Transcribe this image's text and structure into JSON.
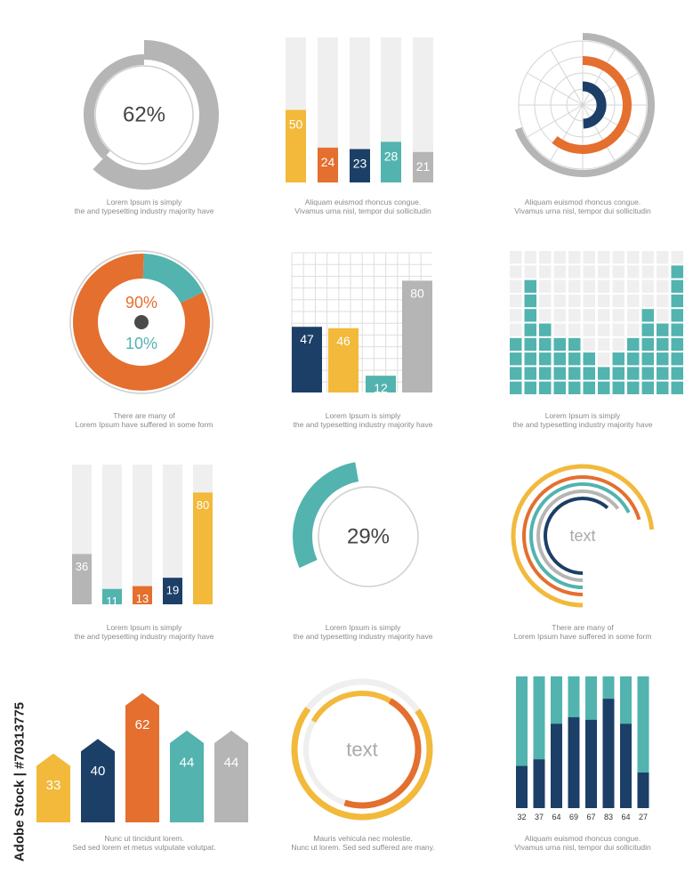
{
  "colors": {
    "yellow": "#F2B93B",
    "orange": "#E46F2E",
    "navy": "#1C3F67",
    "teal": "#52B3AF",
    "gray": "#B5B5B5",
    "light": "#EFEFEF",
    "darkdot": "#4A4A4A"
  },
  "watermark": "Adobe Stock | #70313775",
  "captions": [
    [
      "Lorem Ipsum is simply",
      "the  and typesetting industry majority have"
    ],
    [
      "Aliquam euismod rhoncus congue.",
      "Vivamus urna nisl,  tempor dui sollicitudin"
    ],
    [
      "Aliquam euismod rhoncus congue.",
      "Vivamus urna nisl,  tempor dui sollicitudin"
    ],
    [
      "There are many  of",
      "Lorem Ipsum  have suffered  in some form"
    ],
    [
      "Lorem Ipsum is simply",
      "the  and typesetting industry majority have"
    ],
    [
      "Lorem Ipsum is simply",
      "the  and typesetting industry majority have"
    ],
    [
      "Lorem Ipsum is simply",
      "the  and typesetting industry majority have"
    ],
    [
      "Lorem Ipsum is simply",
      "the  and typesetting industry majority have"
    ],
    [
      "There are many  of",
      "Lorem Ipsum  have suffered  in some form"
    ],
    [
      "Nunc ut tincidunt lorem.",
      "Sed sed lorem et metus vulputate volutpat."
    ],
    [
      "Mauris vehicula nec molestie.",
      "Nunc ut  lorem. Sed sed  suffered  are many."
    ],
    [
      "Aliquam euismod rhoncus congue.",
      "Vivamus urna nisl,  tempor dui sollicitudin"
    ]
  ],
  "chart_data": [
    {
      "type": "pie",
      "variant": "donut",
      "label": "62%",
      "values": [
        62
      ],
      "ylim": [
        0,
        100
      ]
    },
    {
      "type": "bar",
      "variant": "progress-columns",
      "values": [
        50,
        24,
        23,
        28,
        21
      ],
      "value_labels": [
        "50",
        "24",
        "23",
        "28",
        "21"
      ],
      "colors": [
        "yellow",
        "orange",
        "navy",
        "teal",
        "gray"
      ],
      "ylim": [
        0,
        100
      ]
    },
    {
      "type": "pie",
      "variant": "radial-arcs",
      "values": [
        50,
        40,
        30
      ],
      "colors": [
        "gray",
        "orange",
        "navy"
      ],
      "ylim": [
        0,
        100
      ]
    },
    {
      "type": "pie",
      "variant": "donut",
      "values": [
        90,
        10
      ],
      "value_labels": [
        "90%",
        "10%"
      ],
      "colors": [
        "orange",
        "teal"
      ]
    },
    {
      "type": "bar",
      "variant": "grid-bars",
      "values": [
        47,
        46,
        12,
        80
      ],
      "value_labels": [
        "47",
        "46",
        "12",
        "80"
      ],
      "colors": [
        "navy",
        "yellow",
        "teal",
        "gray"
      ],
      "ylim": [
        0,
        100
      ],
      "grid": true
    },
    {
      "type": "bar",
      "variant": "block-columns",
      "values": [
        4,
        8,
        5,
        4,
        4,
        3,
        2,
        3,
        4,
        6,
        5,
        9
      ],
      "ylim": [
        0,
        10
      ]
    },
    {
      "type": "bar",
      "variant": "progress-columns",
      "values": [
        36,
        11,
        13,
        19,
        80
      ],
      "value_labels": [
        "36",
        "11",
        "13",
        "19",
        "80"
      ],
      "colors": [
        "gray",
        "teal",
        "orange",
        "navy",
        "yellow"
      ],
      "ylim": [
        0,
        100
      ]
    },
    {
      "type": "pie",
      "variant": "donut",
      "label": "29%",
      "values": [
        29
      ],
      "ylim": [
        0,
        100
      ]
    },
    {
      "type": "pie",
      "variant": "concentric-arcs",
      "label": "text",
      "values": [
        68,
        65,
        62,
        59,
        56
      ],
      "colors": [
        "yellow",
        "orange",
        "teal",
        "gray",
        "navy"
      ],
      "ylim": [
        0,
        100
      ]
    },
    {
      "type": "bar",
      "variant": "arrow-columns",
      "values": [
        33,
        40,
        62,
        44,
        44
      ],
      "value_labels": [
        "33",
        "40",
        "62",
        "44",
        "44"
      ],
      "colors": [
        "yellow",
        "navy",
        "orange",
        "teal",
        "gray"
      ],
      "ylim": [
        0,
        70
      ]
    },
    {
      "type": "pie",
      "variant": "ring-arcs",
      "label": "text",
      "values": [
        100,
        70,
        30
      ],
      "colors": [
        "light",
        "yellow",
        "orange"
      ]
    },
    {
      "type": "bar",
      "variant": "stacked-columns",
      "categories": [
        "32",
        "37",
        "64",
        "69",
        "67",
        "83",
        "64",
        "27"
      ],
      "values": [
        32,
        37,
        64,
        69,
        67,
        83,
        64,
        27
      ],
      "colors": [
        "navy",
        "teal"
      ],
      "ylim": [
        0,
        100
      ]
    }
  ]
}
